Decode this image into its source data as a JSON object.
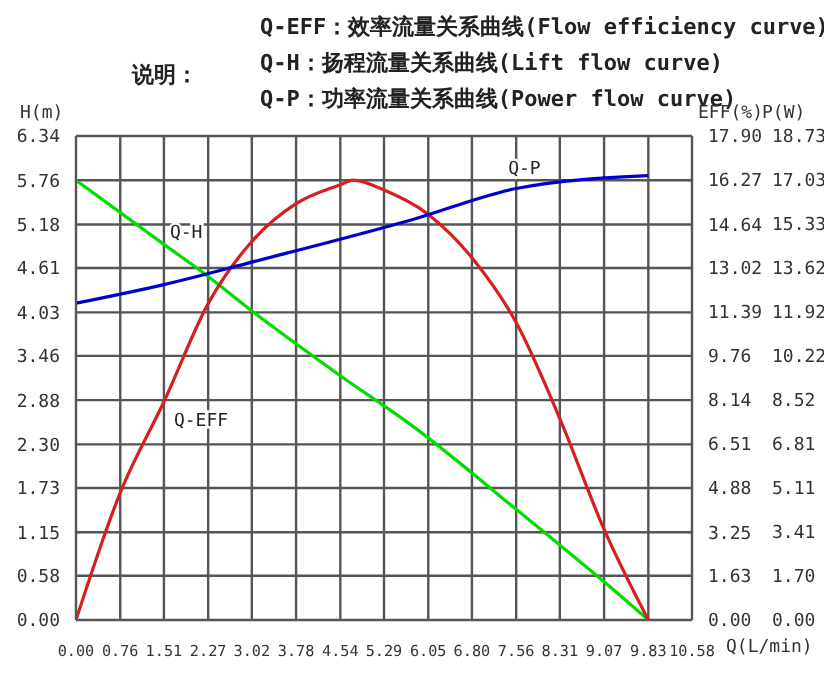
{
  "chart_data": {
    "type": "line",
    "annotations": [
      "说明：",
      "Q-EFF：效率流量关系曲线(Flow efficiency curve)",
      "Q-H：扬程流量关系曲线(Lift flow curve)",
      "Q-P：功率流量关系曲线(Power flow curve)"
    ],
    "xlabel": "Q(L/min)",
    "ylabel": "H(m)",
    "y2label": "EFF(%)",
    "y3label": "P(W)",
    "xlim": [
      0,
      10.58
    ],
    "xticks": [
      {
        "value": 0,
        "label": "0.00"
      },
      0.76,
      1.51,
      2.27,
      3.02,
      3.78,
      4.54,
      5.29,
      6.05,
      {
        "value": 6.8,
        "label": "6.80"
      },
      7.56,
      8.31,
      9.07,
      9.83,
      10.58
    ],
    "ylim": [
      0,
      6.34
    ],
    "yticks": [
      {
        "value": 0,
        "label": "0.00"
      },
      0.58,
      1.15,
      1.73,
      {
        "value": 2.3,
        "label": "2.30"
      },
      2.88,
      3.46,
      4.03,
      4.61,
      5.18,
      5.76,
      6.34
    ],
    "y2lim": [
      0,
      17.9
    ],
    "y2ticks": [
      {
        "value": 0,
        "label": "0.00"
      },
      1.63,
      3.25,
      4.88,
      6.51,
      8.14,
      9.76,
      11.39,
      13.02,
      14.64,
      16.27,
      {
        "value": 17.9,
        "label": "17.90"
      }
    ],
    "y3lim": [
      0,
      18.73
    ],
    "y3ticks": [
      {
        "value": 0,
        "label": "0.00"
      },
      {
        "value": 1.7,
        "label": "1.70"
      },
      3.41,
      5.11,
      6.81,
      8.52,
      10.22,
      11.92,
      13.62,
      15.33,
      17.03,
      18.73
    ],
    "grid": true,
    "marker": "none",
    "line_style": "solid",
    "series": [
      {
        "name": "Q-H",
        "color": "#00dd00",
        "x": [
          0,
          1.51,
          2.27,
          3.02,
          4.54,
          5.8,
          7.56,
          9.07,
          9.83
        ],
        "values": [
          5.76,
          4.92,
          4.5,
          4.05,
          3.2,
          2.53,
          1.45,
          0.5,
          0
        ]
      },
      {
        "name": "Q-EFF",
        "axis": "y2",
        "color": "#d42020",
        "x": [
          0,
          0.76,
          1.51,
          2.27,
          3.02,
          3.78,
          4.54,
          4.76,
          5.29,
          6.05,
          6.8,
          7.56,
          8.31,
          9.07,
          9.83
        ],
        "values": [
          0,
          4.71,
          8.07,
          11.7,
          14.0,
          15.4,
          16.1,
          16.27,
          15.9,
          15.0,
          13.4,
          11.0,
          7.45,
          3.35,
          0
        ]
      },
      {
        "name": "Q-P",
        "axis": "y3",
        "color": "#0000cc",
        "x": [
          0,
          1.51,
          3.02,
          5.8,
          7.56,
          9.83
        ],
        "values": [
          12.26,
          12.98,
          13.85,
          15.51,
          16.7,
          17.2
        ]
      }
    ]
  }
}
